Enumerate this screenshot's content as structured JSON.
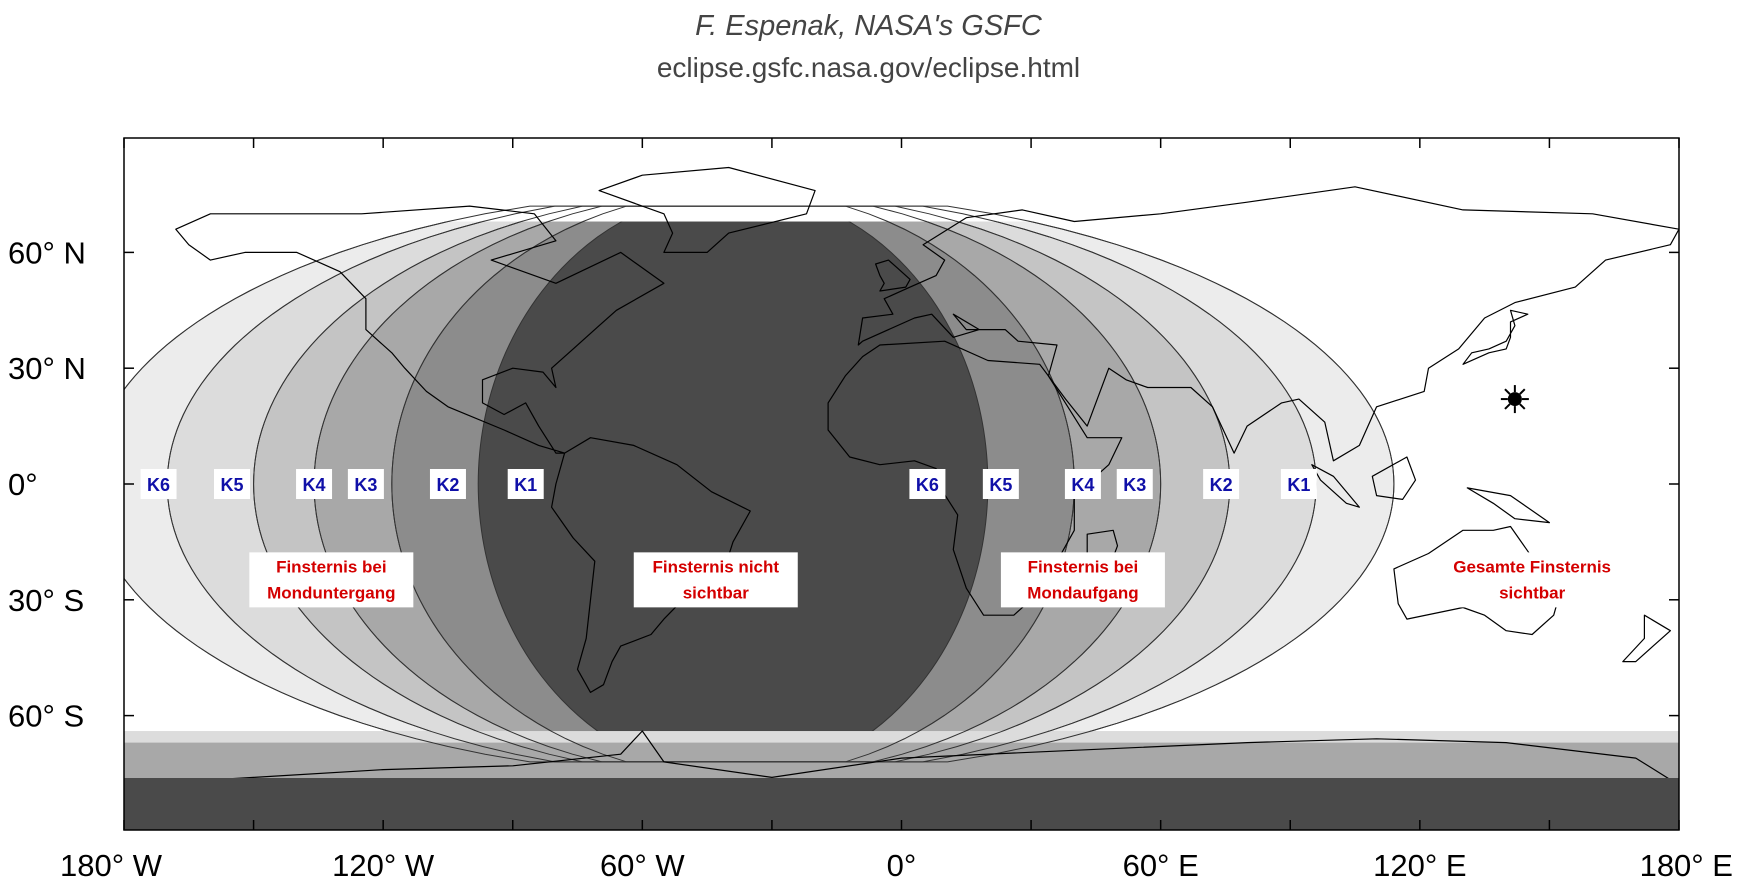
{
  "credit": {
    "line1": "F. Espenak, NASA's GSFC",
    "line2": "eclipse.gsfc.nasa.gov/eclipse.html"
  },
  "axes": {
    "lat_labels": [
      "60° N",
      "30° N",
      "0°",
      "30° S",
      "60° S"
    ],
    "lat_values": [
      60,
      30,
      0,
      -30,
      -60
    ],
    "lon_labels": [
      "180° W",
      "120° W",
      "60° W",
      "0°",
      "60° E",
      "120° E",
      "180° E"
    ],
    "lon_values": [
      -180,
      -120,
      -60,
      0,
      60,
      120,
      180
    ]
  },
  "contacts_west": [
    {
      "label": "K6",
      "lon": -172
    },
    {
      "label": "K5",
      "lon": -155
    },
    {
      "label": "K4",
      "lon": -136
    },
    {
      "label": "K3",
      "lon": -124
    },
    {
      "label": "K2",
      "lon": -105
    },
    {
      "label": "K1",
      "lon": -87
    }
  ],
  "contacts_east": [
    {
      "label": "K6",
      "lon": 6
    },
    {
      "label": "K5",
      "lon": 23
    },
    {
      "label": "K4",
      "lon": 42
    },
    {
      "label": "K3",
      "lon": 54
    },
    {
      "label": "K2",
      "lon": 74
    },
    {
      "label": "K1",
      "lon": 92
    }
  ],
  "regions": [
    {
      "lines": [
        "Finsternis bei",
        "Monduntergang"
      ],
      "lon": -132,
      "lat": -26
    },
    {
      "lines": [
        "Finsternis nicht",
        "sichtbar"
      ],
      "lon": -43,
      "lat": -26
    },
    {
      "lines": [
        "Finsternis bei",
        "Mondaufgang"
      ],
      "lon": 42,
      "lat": -26
    },
    {
      "lines": [
        "Gesamte Finsternis",
        "sichtbar"
      ],
      "lon": 146,
      "lat": -26
    }
  ],
  "subsolar_marker": {
    "icon": "sun-icon",
    "lon": 142,
    "lat": 22
  },
  "shading": {
    "not_visible": "#4a4a4a",
    "band_dark": "#8c8c8c",
    "band_mid": "#a8a8a8",
    "band_light": "#c4c4c4",
    "band_lighter": "#dcdcdc",
    "band_lightest": "#ececec",
    "full_visible": "#ffffff"
  }
}
